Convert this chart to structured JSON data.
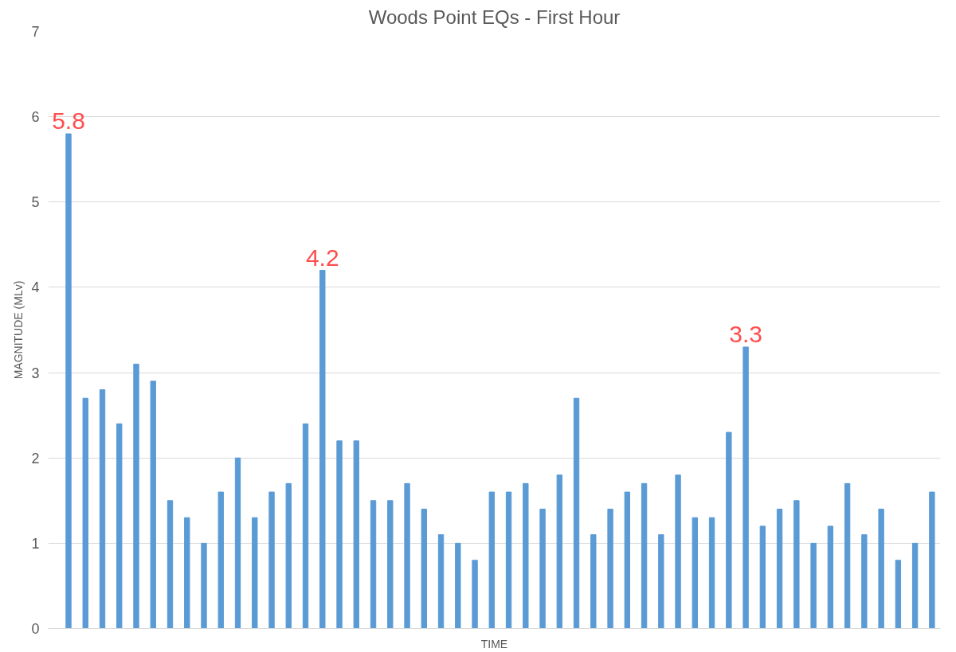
{
  "chart_data": {
    "type": "bar",
    "title": "Woods Point EQs - First Hour",
    "xlabel": "TIME",
    "ylabel": "MAGNITUDE (MLv)",
    "categories": [
      null,
      null,
      null,
      null,
      null,
      null,
      null,
      null,
      null,
      null,
      null,
      null,
      null,
      null,
      null,
      null,
      null,
      null,
      null,
      null,
      null,
      null,
      null,
      null,
      null,
      null,
      null,
      null,
      null,
      null,
      null,
      null,
      null,
      null,
      null,
      null,
      null,
      null,
      null,
      null,
      null,
      null,
      null,
      null,
      null,
      null,
      null,
      null,
      null,
      null,
      null,
      null
    ],
    "values": [
      5.8,
      2.7,
      2.8,
      2.4,
      3.1,
      2.9,
      1.5,
      1.3,
      1.0,
      1.6,
      2.0,
      1.3,
      1.6,
      1.7,
      2.4,
      4.2,
      2.2,
      2.2,
      1.5,
      1.5,
      1.7,
      1.4,
      1.1,
      1.0,
      0.8,
      1.6,
      1.6,
      1.7,
      1.4,
      1.8,
      2.7,
      1.1,
      1.4,
      1.6,
      1.7,
      1.1,
      1.8,
      1.3,
      1.3,
      2.3,
      3.3,
      1.2,
      1.4,
      1.5,
      1.0,
      1.2,
      1.7,
      1.1,
      1.4,
      0.8,
      1.0,
      1.6
    ],
    "value_labels": [
      "5.8",
      null,
      null,
      null,
      null,
      null,
      null,
      null,
      null,
      null,
      null,
      null,
      null,
      null,
      null,
      "4.2",
      null,
      null,
      null,
      null,
      null,
      null,
      null,
      null,
      null,
      null,
      null,
      null,
      null,
      null,
      null,
      null,
      null,
      null,
      null,
      null,
      null,
      null,
      null,
      null,
      "3.3",
      null,
      null,
      null,
      null,
      null,
      null,
      null,
      null,
      null,
      null,
      null
    ],
    "color": "#5b9bd5",
    "ylim": [
      0,
      7
    ],
    "yticks": [
      0,
      1,
      2,
      3,
      4,
      5,
      6,
      7
    ],
    "grid": "y"
  }
}
